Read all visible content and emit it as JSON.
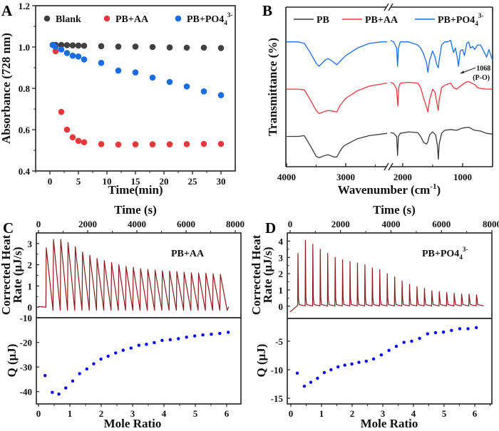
{
  "chart_data": [
    {
      "id": "A",
      "type": "scatter",
      "panel_label": "A",
      "title": "",
      "xlabel": "Time(min)",
      "ylabel": "Absorbance (728 nm)",
      "xlim": [
        -2.5,
        32.5
      ],
      "ylim": [
        0.4,
        1.2
      ],
      "xticks": [
        0,
        5,
        10,
        15,
        20,
        25,
        30
      ],
      "yticks": [
        0.4,
        0.6,
        0.8,
        1.0,
        1.2
      ],
      "ytick_labels": [
        "0.4",
        "0.6",
        "0.8",
        "1.0",
        "1.2"
      ],
      "legend_position": "top",
      "series": [
        {
          "name": "Blank",
          "color": "#404040",
          "x": [
            0.5,
            1,
            2,
            3,
            4,
            5,
            6,
            9,
            12,
            15,
            18,
            21,
            24,
            27,
            30
          ],
          "y": [
            1.01,
            1.01,
            1.01,
            1.009,
            1.008,
            1.007,
            1.006,
            1.004,
            1.002,
            1.002,
            1.0,
            0.998,
            0.997,
            0.997,
            0.995
          ]
        },
        {
          "name": "PB+AA",
          "color": "#e8383b",
          "x": [
            0.5,
            1,
            2,
            3,
            4,
            5,
            6,
            9,
            12,
            15,
            18,
            21,
            24,
            27,
            30
          ],
          "y": [
            1.01,
            0.98,
            0.686,
            0.6,
            0.563,
            0.546,
            0.539,
            0.53,
            0.528,
            0.529,
            0.529,
            0.529,
            0.53,
            0.531,
            0.531
          ]
        },
        {
          "name": "PB+PO4",
          "name_sub": "4",
          "name_sup": "3-",
          "color": "#1a6de0",
          "x": [
            0.5,
            1,
            2,
            3,
            4,
            5,
            6,
            9,
            12,
            15,
            18,
            21,
            24,
            27,
            30
          ],
          "y": [
            1.01,
            1.0,
            0.988,
            0.971,
            0.958,
            0.954,
            0.94,
            0.923,
            0.886,
            0.877,
            0.852,
            0.831,
            0.809,
            0.785,
            0.767
          ]
        }
      ]
    },
    {
      "id": "B",
      "type": "line",
      "panel_label": "B",
      "xlabel": "Wavenumber (cm",
      "xlabel_sup": "-1",
      "xlabel_end": ")",
      "ylabel": "Transmittance (%)",
      "xlim_segments": [
        [
          4000,
          2300
        ],
        [
          2200,
          500
        ]
      ],
      "xticks": [
        4000,
        3000,
        2000,
        1000
      ],
      "axis_break": true,
      "legend_position": "top",
      "annotation": {
        "text": "1068",
        "text2": "(P-O)",
        "x": 1068
      },
      "series": [
        {
          "name": "PB",
          "color": "#3a3a3a",
          "points": [
            [
              4000,
              0.18
            ],
            [
              3800,
              0.18
            ],
            [
              3700,
              0.185
            ],
            [
              3600,
              0.12
            ],
            [
              3500,
              0.05
            ],
            [
              3450,
              0.04
            ],
            [
              3350,
              0.055
            ],
            [
              3300,
              0.06
            ],
            [
              3200,
              0.045
            ],
            [
              3150,
              0.045
            ],
            [
              3100,
              0.08
            ],
            [
              3050,
              0.11
            ],
            [
              3000,
              0.125
            ],
            [
              2800,
              0.165
            ],
            [
              2600,
              0.185
            ],
            [
              2300,
              0.2
            ],
            [
              2200,
              0.205
            ],
            [
              2150,
              0.2
            ],
            [
              2100,
              0.18
            ],
            [
              2085,
              0.055
            ],
            [
              2070,
              0.18
            ],
            [
              2040,
              0.2
            ],
            [
              1900,
              0.21
            ],
            [
              1750,
              0.205
            ],
            [
              1700,
              0.18
            ],
            [
              1650,
              0.14
            ],
            [
              1600,
              0.13
            ],
            [
              1580,
              0.145
            ],
            [
              1550,
              0.19
            ],
            [
              1500,
              0.21
            ],
            [
              1450,
              0.19
            ],
            [
              1420,
              0.12
            ],
            [
              1405,
              0.03
            ],
            [
              1390,
              0.13
            ],
            [
              1350,
              0.2
            ],
            [
              1300,
              0.22
            ],
            [
              1200,
              0.225
            ],
            [
              1100,
              0.22
            ],
            [
              1000,
              0.235
            ],
            [
              900,
              0.24
            ],
            [
              800,
              0.22
            ],
            [
              700,
              0.215
            ],
            [
              600,
              0.2
            ],
            [
              500,
              0.195
            ]
          ]
        },
        {
          "name": "PB+AA",
          "color": "#e8383b",
          "points": [
            [
              4000,
              0.49
            ],
            [
              3800,
              0.49
            ],
            [
              3700,
              0.485
            ],
            [
              3600,
              0.42
            ],
            [
              3500,
              0.35
            ],
            [
              3450,
              0.33
            ],
            [
              3350,
              0.345
            ],
            [
              3300,
              0.35
            ],
            [
              3200,
              0.345
            ],
            [
              3150,
              0.34
            ],
            [
              3100,
              0.38
            ],
            [
              3000,
              0.43
            ],
            [
              2800,
              0.48
            ],
            [
              2600,
              0.51
            ],
            [
              2300,
              0.53
            ],
            [
              2200,
              0.535
            ],
            [
              2150,
              0.525
            ],
            [
              2100,
              0.49
            ],
            [
              2080,
              0.38
            ],
            [
              2065,
              0.5
            ],
            [
              2040,
              0.53
            ],
            [
              1900,
              0.535
            ],
            [
              1750,
              0.53
            ],
            [
              1700,
              0.5
            ],
            [
              1650,
              0.43
            ],
            [
              1600,
              0.37
            ],
            [
              1580,
              0.34
            ],
            [
              1550,
              0.42
            ],
            [
              1500,
              0.49
            ],
            [
              1460,
              0.47
            ],
            [
              1430,
              0.4
            ],
            [
              1405,
              0.35
            ],
            [
              1390,
              0.42
            ],
            [
              1350,
              0.5
            ],
            [
              1300,
              0.515
            ],
            [
              1200,
              0.53
            ],
            [
              1150,
              0.5
            ],
            [
              1100,
              0.49
            ],
            [
              1000,
              0.52
            ],
            [
              950,
              0.535
            ],
            [
              900,
              0.54
            ],
            [
              850,
              0.53
            ],
            [
              800,
              0.52
            ],
            [
              750,
              0.5
            ],
            [
              700,
              0.495
            ],
            [
              600,
              0.49
            ],
            [
              500,
              0.49
            ]
          ]
        },
        {
          "name": "PB+PO4",
          "name_sub": "4",
          "name_sup": "3-",
          "color": "#1a6de0",
          "points": [
            [
              4000,
              0.8
            ],
            [
              3800,
              0.8
            ],
            [
              3700,
              0.79
            ],
            [
              3600,
              0.73
            ],
            [
              3500,
              0.66
            ],
            [
              3450,
              0.64
            ],
            [
              3350,
              0.68
            ],
            [
              3300,
              0.69
            ],
            [
              3250,
              0.68
            ],
            [
              3150,
              0.65
            ],
            [
              3100,
              0.67
            ],
            [
              3000,
              0.71
            ],
            [
              2800,
              0.76
            ],
            [
              2600,
              0.79
            ],
            [
              2400,
              0.8
            ],
            [
              2300,
              0.8
            ],
            [
              2200,
              0.81
            ],
            [
              2150,
              0.8
            ],
            [
              2100,
              0.76
            ],
            [
              2085,
              0.64
            ],
            [
              2070,
              0.76
            ],
            [
              2040,
              0.8
            ],
            [
              1900,
              0.8
            ],
            [
              1750,
              0.78
            ],
            [
              1700,
              0.76
            ],
            [
              1650,
              0.72
            ],
            [
              1600,
              0.66
            ],
            [
              1580,
              0.6
            ],
            [
              1550,
              0.68
            ],
            [
              1500,
              0.74
            ],
            [
              1460,
              0.7
            ],
            [
              1430,
              0.65
            ],
            [
              1405,
              0.63
            ],
            [
              1390,
              0.68
            ],
            [
              1350,
              0.78
            ],
            [
              1300,
              0.8
            ],
            [
              1250,
              0.8
            ],
            [
              1200,
              0.81
            ],
            [
              1150,
              0.73
            ],
            [
              1120,
              0.76
            ],
            [
              1090,
              0.7
            ],
            [
              1068,
              0.64
            ],
            [
              1040,
              0.74
            ],
            [
              1000,
              0.75
            ],
            [
              970,
              0.71
            ],
            [
              930,
              0.79
            ],
            [
              900,
              0.8
            ],
            [
              870,
              0.76
            ],
            [
              830,
              0.77
            ],
            [
              800,
              0.75
            ],
            [
              750,
              0.78
            ],
            [
              700,
              0.78
            ],
            [
              650,
              0.74
            ],
            [
              600,
              0.7
            ],
            [
              560,
              0.75
            ],
            [
              520,
              0.7
            ],
            [
              500,
              0.68
            ]
          ]
        }
      ]
    },
    {
      "id": "C",
      "type": "line",
      "panel_label": "C",
      "sample_label": "PB+AA",
      "top": {
        "xlabel": "Time (s)",
        "ylabel_line1": "Corrected Heat",
        "ylabel_line2": "Rate (μJ/s)",
        "xlim": [
          0,
          8000
        ],
        "xticks": [
          0,
          2000,
          4000,
          6000,
          8000
        ],
        "ylim": [
          -0.5,
          3.5
        ],
        "yticks": [
          0,
          1,
          2,
          3
        ],
        "baseline_end_time": 300,
        "injection_interval_s": 295,
        "peak_heights": [
          2.8,
          3.2,
          3.2,
          3.05,
          2.85,
          2.6,
          2.45,
          2.3,
          2.2,
          2.1,
          2.0,
          1.92,
          1.88,
          1.82,
          1.78,
          1.75,
          1.72,
          1.7,
          1.68,
          1.65,
          1.62,
          1.6,
          1.6,
          1.58,
          1.55
        ],
        "color": "#8b1a1a"
      },
      "bottom": {
        "xlabel": "Mole Ratio",
        "ylabel": "Q (μJ)",
        "xlim": [
          -0.05,
          6.5
        ],
        "xticks": [
          0,
          1,
          2,
          3,
          4,
          5,
          6
        ],
        "ylim": [
          -45,
          -10
        ],
        "yticks": [
          -10,
          -20,
          -30,
          -40
        ],
        "x": [
          0.21,
          0.44,
          0.65,
          0.87,
          1.09,
          1.31,
          1.54,
          1.76,
          1.99,
          2.22,
          2.46,
          2.7,
          2.95,
          3.2,
          3.44,
          3.69,
          3.94,
          4.2,
          4.46,
          4.72,
          4.98,
          5.24,
          5.51,
          5.78,
          6.05
        ],
        "y": [
          -33.5,
          -40.3,
          -41.0,
          -38.5,
          -35.7,
          -32.7,
          -30.8,
          -28.7,
          -26.8,
          -25.6,
          -24.3,
          -23.2,
          -22.3,
          -21.2,
          -20.8,
          -20.1,
          -19.2,
          -18.9,
          -18.5,
          -17.9,
          -17.4,
          -17.0,
          -16.7,
          -16.4,
          -15.9
        ],
        "color": "#0000ff"
      }
    },
    {
      "id": "D",
      "type": "line",
      "panel_label": "D",
      "sample_label": "PB+PO4",
      "sample_sub": "4",
      "sample_sup": "3-",
      "top": {
        "xlabel": "Time (s)",
        "ylabel_line1": "Corrected Heat",
        "ylabel_line2": "Rate (μJ/s)",
        "xlim": [
          0,
          8000
        ],
        "xticks": [
          0,
          2000,
          4000,
          6000,
          8000
        ],
        "ylim": [
          -0.75,
          4.5
        ],
        "yticks": [
          0,
          1,
          2,
          3,
          4
        ],
        "baseline_end_time": 300,
        "injection_interval_s": 295,
        "peak_heights": [
          3.25,
          4.05,
          3.8,
          3.5,
          3.25,
          3.0,
          2.85,
          2.75,
          2.65,
          2.55,
          2.35,
          2.25,
          2.0,
          1.8,
          1.55,
          1.35,
          1.2,
          1.1,
          0.95,
          0.9,
          0.85,
          0.8,
          0.75,
          0.75,
          0.7
        ],
        "color": "#8b1a1a"
      },
      "bottom": {
        "xlabel": "Mole Ratio",
        "ylabel": "Q (μJ)",
        "xlim": [
          -0.1,
          6.5
        ],
        "xticks": [
          0,
          1,
          2,
          3,
          4,
          5,
          6
        ],
        "ylim": [
          -16,
          -1
        ],
        "yticks": [
          -5,
          -10,
          -15
        ],
        "x": [
          0.21,
          0.44,
          0.65,
          0.87,
          1.09,
          1.31,
          1.54,
          1.76,
          1.99,
          2.22,
          2.46,
          2.7,
          2.95,
          3.2,
          3.44,
          3.69,
          3.94,
          4.2,
          4.46,
          4.72,
          4.98,
          5.24,
          5.51,
          5.78,
          6.05
        ],
        "y": [
          -10.6,
          -12.9,
          -12.2,
          -11.5,
          -10.5,
          -10.0,
          -9.5,
          -9.2,
          -9.0,
          -8.7,
          -8.5,
          -8.1,
          -7.4,
          -6.6,
          -5.9,
          -5.2,
          -5.0,
          -4.5,
          -3.7,
          -3.5,
          -3.4,
          -3.1,
          -2.8,
          -2.8,
          -2.6
        ],
        "color": "#0000ff"
      }
    }
  ]
}
